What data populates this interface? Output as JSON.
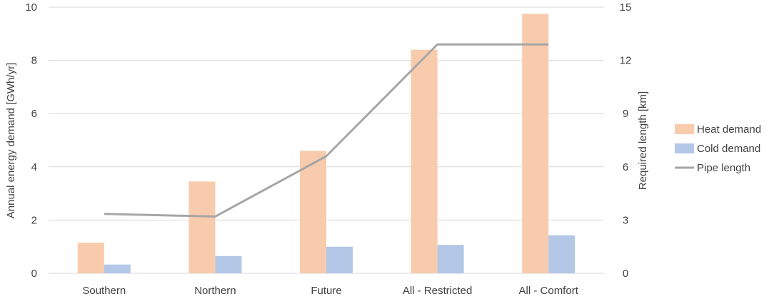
{
  "chart_data": {
    "type": "bar",
    "categories": [
      "Southern",
      "Northern",
      "Future",
      "All - Restricted",
      "All - Comfort"
    ],
    "series": [
      {
        "name": "Heat demand",
        "kind": "bar",
        "axis": "left",
        "color": "#f8cbad",
        "values": [
          1.15,
          3.45,
          4.6,
          8.4,
          9.75
        ]
      },
      {
        "name": "Cold demand",
        "kind": "bar",
        "axis": "left",
        "color": "#b4c7e7",
        "values": [
          0.33,
          0.65,
          1.0,
          1.07,
          1.43
        ]
      },
      {
        "name": "Pipe length",
        "kind": "line",
        "axis": "right",
        "color": "#a6a6a6",
        "values": [
          3.35,
          3.2,
          6.6,
          12.9,
          12.9
        ]
      }
    ],
    "ylabel": "Annual energy demand [GWh/yr]",
    "ylim": [
      0,
      10
    ],
    "yticks": [
      "0",
      "2",
      "4",
      "6",
      "8",
      "10"
    ],
    "y2label": "Required length [km]",
    "y2lim": [
      0,
      15
    ],
    "y2ticks": [
      "0",
      "3",
      "6",
      "9",
      "12",
      "15"
    ],
    "grid": true,
    "legend": "right"
  }
}
